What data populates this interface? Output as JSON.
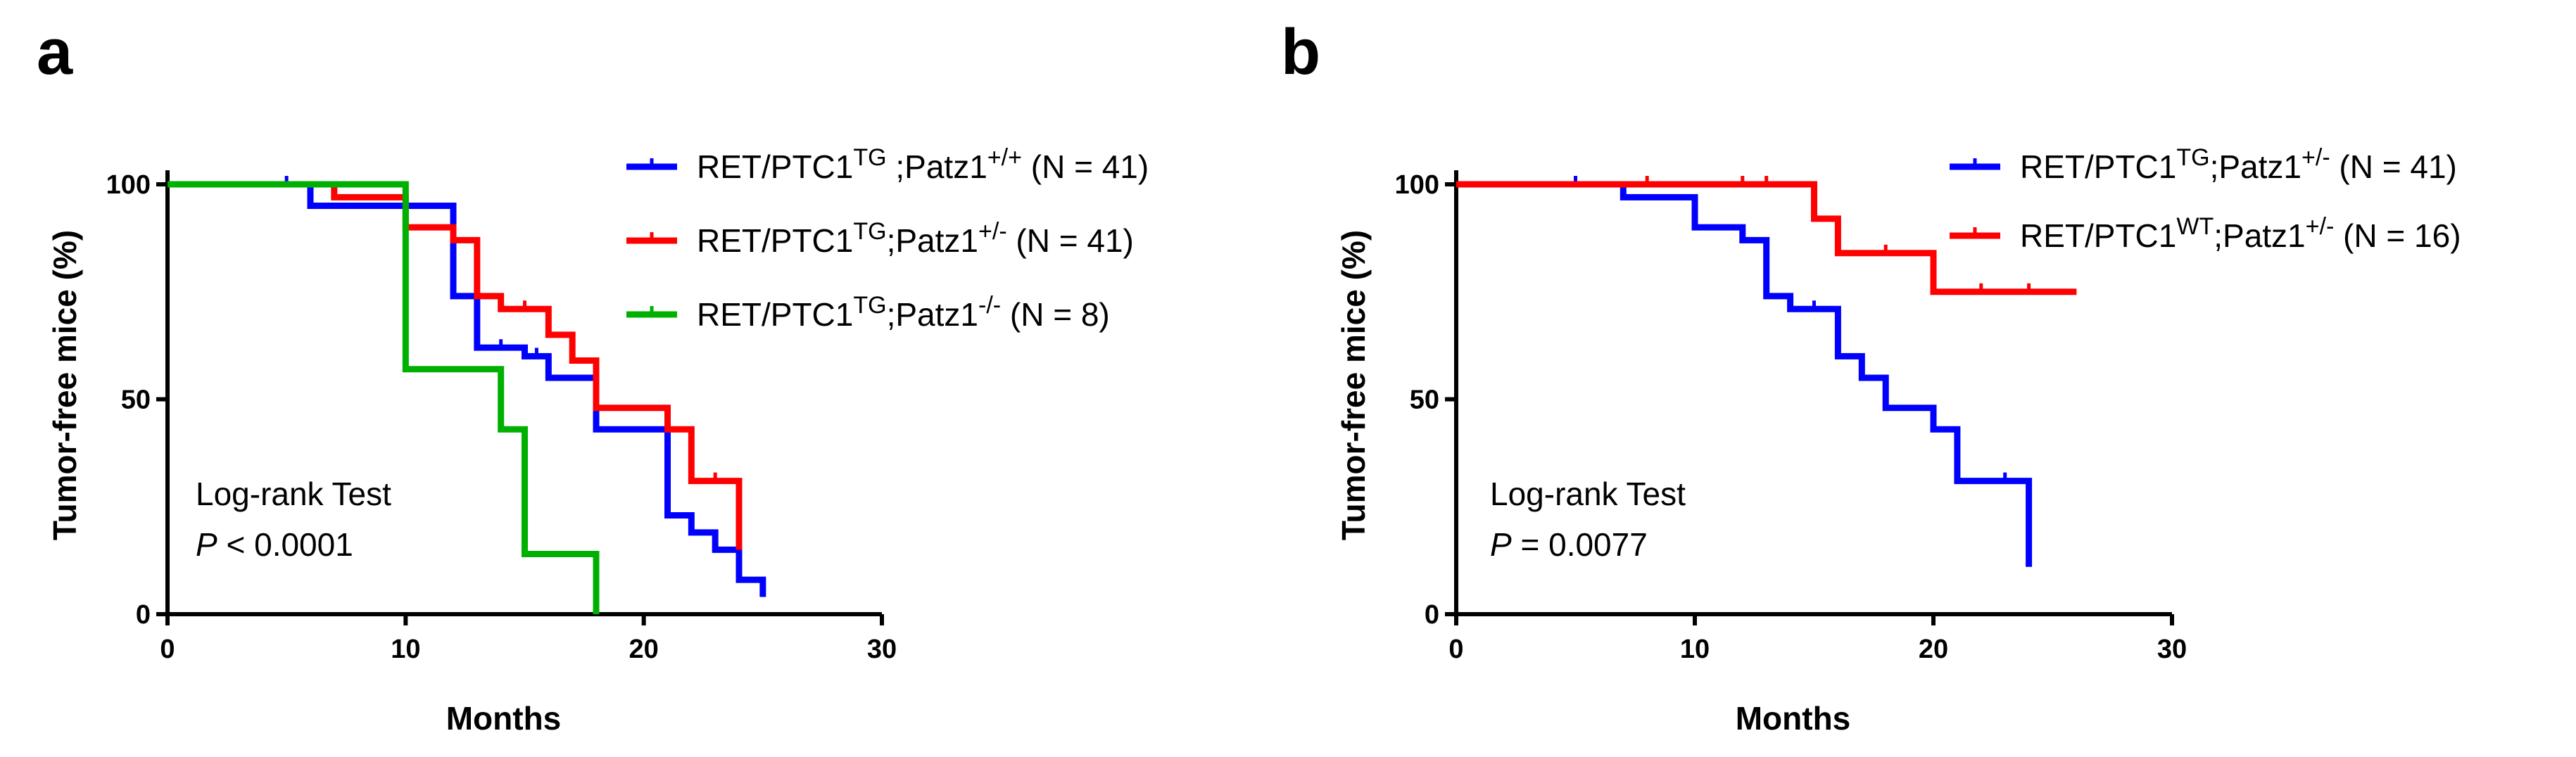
{
  "chart_data": [
    {
      "panel_label": "a",
      "type": "line",
      "step": true,
      "xlabel": "Months",
      "ylabel": "Tumor-free mice (%)",
      "xlim": [
        0,
        30
      ],
      "ylim": [
        0,
        100
      ],
      "xticks": [
        "0",
        "10",
        "20",
        "30"
      ],
      "yticks": [
        "0",
        "50",
        "100"
      ],
      "annotation": [
        "Log-rank Test",
        "P < 0.0001"
      ],
      "legend_position": "top-right",
      "series": [
        {
          "name": "RET/PTC1TG ;Patz1+/+ (N = 41)",
          "legend_parts": [
            "RET/PTC1",
            "TG",
            " ;Patz1",
            "+/+",
            " (N = 41)"
          ],
          "color": "#0000ff",
          "x": [
            0,
            6,
            12,
            13,
            15,
            16,
            18,
            21,
            22,
            23,
            24,
            25
          ],
          "y": [
            100,
            95,
            74,
            62,
            60,
            55,
            43,
            23,
            19,
            15,
            8,
            4
          ],
          "censored": [
            [
              5,
              100
            ],
            [
              14,
              62
            ],
            [
              15.5,
              60
            ]
          ]
        },
        {
          "name": "RET/PTC1TG;Patz1+/- (N = 41)",
          "legend_parts": [
            "RET/PTC1",
            "TG",
            ";Patz1",
            "+/-",
            " (N = 41)"
          ],
          "color": "#ff0000",
          "x": [
            0,
            7,
            10,
            12,
            13,
            14,
            16,
            17,
            18,
            21,
            22,
            24
          ],
          "y": [
            100,
            97,
            90,
            87,
            74,
            71,
            65,
            59,
            48,
            43,
            31,
            15
          ],
          "censored": [
            [
              15,
              71
            ],
            [
              23,
              31
            ]
          ]
        },
        {
          "name": "RET/PTC1TG;Patz1-/- (N = 8)",
          "legend_parts": [
            "RET/PTC1",
            "TG",
            ";Patz1",
            "-/-",
            " (N = 8)"
          ],
          "color": "#00b000",
          "x": [
            0,
            10,
            14,
            15,
            18
          ],
          "y": [
            100,
            57,
            43,
            14,
            0
          ],
          "censored": []
        }
      ]
    },
    {
      "panel_label": "b",
      "type": "line",
      "step": true,
      "xlabel": "Months",
      "ylabel": "Tumor-free mice (%)",
      "xlim": [
        0,
        30
      ],
      "ylim": [
        0,
        100
      ],
      "xticks": [
        "0",
        "10",
        "20",
        "30"
      ],
      "yticks": [
        "0",
        "50",
        "100"
      ],
      "annotation": [
        "Log-rank Test",
        "P = 0.0077"
      ],
      "legend_position": "top-right",
      "series": [
        {
          "name": "RET/PTC1TG;Patz1+/- (N = 41)",
          "legend_parts": [
            "RET/PTC1",
            "TG",
            ";Patz1",
            "+/-",
            " (N = 41)"
          ],
          "color": "#0000ff",
          "x": [
            0,
            7,
            10,
            12,
            13,
            14,
            16,
            17,
            18,
            20,
            21,
            24
          ],
          "y": [
            100,
            97,
            90,
            87,
            74,
            71,
            60,
            55,
            48,
            43,
            31,
            11
          ],
          "censored": [
            [
              5,
              100
            ],
            [
              15,
              71
            ],
            [
              23,
              31
            ]
          ]
        },
        {
          "name": "RET/PTC1WT;Patz1+/- (N = 16)",
          "legend_parts": [
            "RET/PTC1",
            "WT",
            ";Patz1",
            "+/-",
            " (N = 16)"
          ],
          "color": "#ff0000",
          "x": [
            0,
            15,
            16,
            20,
            26
          ],
          "y": [
            100,
            92,
            84,
            75,
            75
          ],
          "censored": [
            [
              8,
              100
            ],
            [
              12,
              100
            ],
            [
              13,
              100
            ],
            [
              18,
              84
            ],
            [
              22,
              75
            ],
            [
              24,
              75
            ]
          ]
        }
      ]
    }
  ]
}
